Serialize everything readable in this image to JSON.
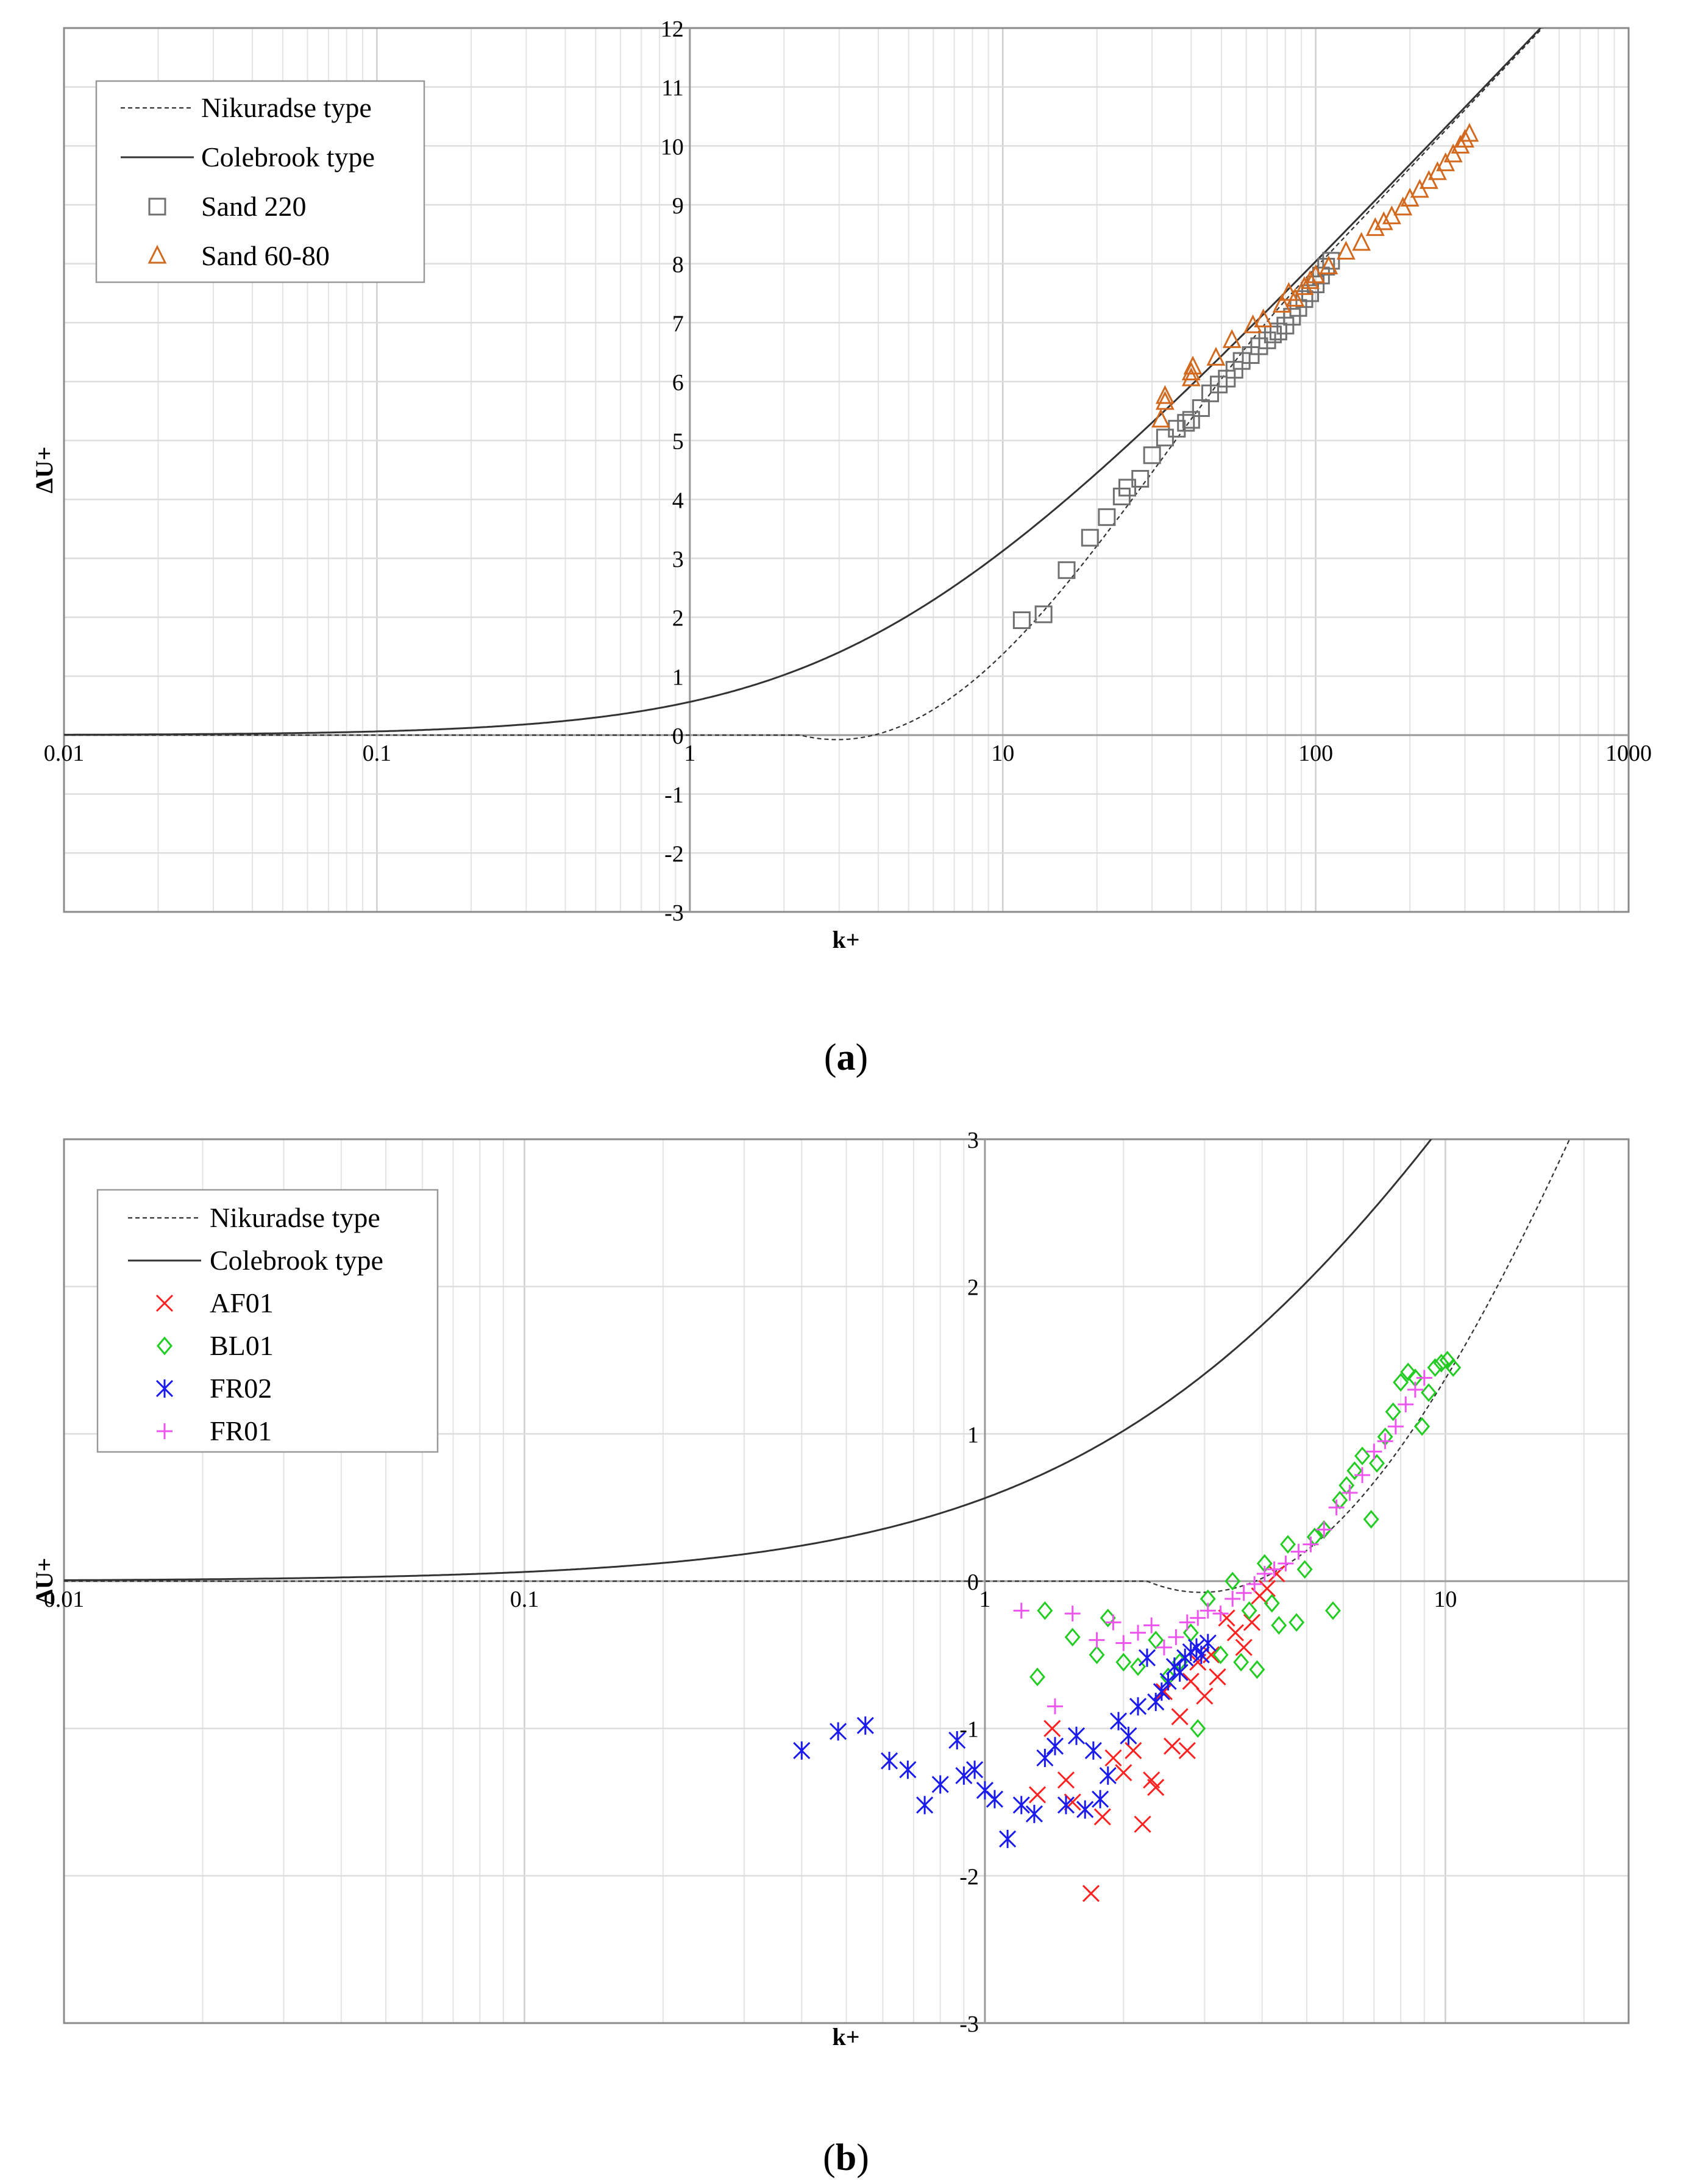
{
  "chart_data": [
    {
      "type": "scatter",
      "panel": "(a)",
      "caption_open": "(",
      "caption_letter": "a",
      "caption_close": ")",
      "xlabel": "k+",
      "ylabel": "ΔU+",
      "xscale": "log",
      "xlim": [
        0.01,
        1000
      ],
      "ylim": [
        -3,
        12
      ],
      "x_ticks": [
        {
          "v": 0.01,
          "label": "0.01"
        },
        {
          "v": 0.1,
          "label": "0.1"
        },
        {
          "v": 1,
          "label": "1"
        },
        {
          "v": 10,
          "label": "10"
        },
        {
          "v": 100,
          "label": "100"
        },
        {
          "v": 1000,
          "label": "1000"
        }
      ],
      "y_ticks": [
        -3,
        -2,
        -1,
        0,
        1,
        2,
        3,
        4,
        5,
        6,
        7,
        8,
        9,
        10,
        11,
        12
      ],
      "y_tick_labels": [
        "-3",
        "-2",
        "-1",
        "0",
        "1",
        "2",
        "3",
        "4",
        "5",
        "6",
        "7",
        "8",
        "9",
        "10",
        "11",
        "12"
      ],
      "grid": true,
      "legend_position": "top-left",
      "legend": [
        {
          "label": "Nikuradse type",
          "marker": "dashed-line",
          "color": "#333333"
        },
        {
          "label": "Colebrook type",
          "marker": "solid-line",
          "color": "#333333"
        },
        {
          "label": "Sand 220",
          "marker": "square",
          "color": "#707070"
        },
        {
          "label": "Sand 60-80",
          "marker": "triangle",
          "color": "#d2691e"
        }
      ],
      "curves": [
        "nikuradse",
        "colebrook"
      ],
      "series": [
        {
          "name": "Sand 220",
          "marker": "square",
          "color": "#707070",
          "points": [
            [
              11.5,
              1.95
            ],
            [
              13.5,
              2.05
            ],
            [
              16,
              2.8
            ],
            [
              19,
              3.35
            ],
            [
              21.5,
              3.7
            ],
            [
              24,
              4.05
            ],
            [
              25,
              4.2
            ],
            [
              27.5,
              4.35
            ],
            [
              30,
              4.75
            ],
            [
              33,
              5.05
            ],
            [
              36,
              5.2
            ],
            [
              38.5,
              5.3
            ],
            [
              40,
              5.35
            ],
            [
              43,
              5.55
            ],
            [
              46,
              5.8
            ],
            [
              49,
              5.95
            ],
            [
              52,
              6.05
            ],
            [
              55,
              6.2
            ],
            [
              58,
              6.35
            ],
            [
              62,
              6.45
            ],
            [
              66,
              6.6
            ],
            [
              70,
              6.7
            ],
            [
              73,
              6.8
            ],
            [
              76,
              6.85
            ],
            [
              80,
              6.95
            ],
            [
              84,
              7.1
            ],
            [
              88,
              7.25
            ],
            [
              92,
              7.4
            ],
            [
              96,
              7.5
            ],
            [
              100,
              7.65
            ],
            [
              104,
              7.8
            ],
            [
              108,
              7.95
            ],
            [
              112,
              8.05
            ]
          ]
        },
        {
          "name": "Sand 60-80",
          "marker": "triangle",
          "color": "#d2691e",
          "points": [
            [
              32,
              5.35
            ],
            [
              33,
              5.65
            ],
            [
              33,
              5.75
            ],
            [
              40,
              6.05
            ],
            [
              40,
              6.15
            ],
            [
              40.5,
              6.25
            ],
            [
              48,
              6.4
            ],
            [
              54,
              6.7
            ],
            [
              63,
              6.95
            ],
            [
              68,
              7.05
            ],
            [
              78,
              7.3
            ],
            [
              82,
              7.5
            ],
            [
              86,
              7.4
            ],
            [
              92,
              7.6
            ],
            [
              96,
              7.7
            ],
            [
              100,
              7.8
            ],
            [
              110,
              7.95
            ],
            [
              125,
              8.2
            ],
            [
              140,
              8.35
            ],
            [
              155,
              8.6
            ],
            [
              165,
              8.7
            ],
            [
              175,
              8.8
            ],
            [
              190,
              8.95
            ],
            [
              200,
              9.1
            ],
            [
              215,
              9.25
            ],
            [
              230,
              9.4
            ],
            [
              245,
              9.55
            ],
            [
              260,
              9.7
            ],
            [
              275,
              9.85
            ],
            [
              290,
              10.0
            ],
            [
              300,
              10.1
            ],
            [
              310,
              10.2
            ]
          ]
        }
      ]
    },
    {
      "type": "scatter",
      "panel": "(b)",
      "caption_open": "(",
      "caption_letter": "b",
      "caption_close": ")",
      "xlabel": "k+",
      "ylabel": "ΔU+",
      "xscale": "log",
      "xlim": [
        0.01,
        25
      ],
      "ylim": [
        -3,
        3
      ],
      "x_ticks": [
        {
          "v": 0.01,
          "label": "0.01"
        },
        {
          "v": 0.1,
          "label": "0.1"
        },
        {
          "v": 1,
          "label": "1"
        },
        {
          "v": 10,
          "label": "10"
        }
      ],
      "y_ticks": [
        -3,
        -2,
        -1,
        0,
        1,
        2,
        3
      ],
      "y_tick_labels": [
        "-3",
        "-2",
        "-1",
        "0",
        "1",
        "2",
        "3"
      ],
      "grid": true,
      "legend_position": "top-left",
      "legend": [
        {
          "label": "Nikuradse type",
          "marker": "dashed-line",
          "color": "#333333"
        },
        {
          "label": "Colebrook type",
          "marker": "solid-line",
          "color": "#333333"
        },
        {
          "label": "AF01",
          "marker": "x",
          "color": "#ff2020"
        },
        {
          "label": "BL01",
          "marker": "diamond",
          "color": "#22cc22"
        },
        {
          "label": "FR02",
          "marker": "asterisk",
          "color": "#1a1aee"
        },
        {
          "label": "FR01",
          "marker": "plus",
          "color": "#ee55ee"
        }
      ],
      "curves": [
        "nikuradse",
        "colebrook"
      ],
      "series": [
        {
          "name": "AF01",
          "marker": "x",
          "color": "#ff2020",
          "points": [
            [
              1.3,
              -1.45
            ],
            [
              1.4,
              -1.0
            ],
            [
              1.5,
              -1.35
            ],
            [
              1.55,
              -1.5
            ],
            [
              1.65,
              -1.55
            ],
            [
              1.7,
              -2.12
            ],
            [
              1.8,
              -1.6
            ],
            [
              1.9,
              -1.2
            ],
            [
              2.0,
              -1.3
            ],
            [
              2.1,
              -1.15
            ],
            [
              2.2,
              -1.65
            ],
            [
              2.3,
              -1.35
            ],
            [
              2.35,
              -1.4
            ],
            [
              2.45,
              -0.75
            ],
            [
              2.55,
              -1.12
            ],
            [
              2.65,
              -0.92
            ],
            [
              2.75,
              -1.15
            ],
            [
              2.8,
              -0.68
            ],
            [
              2.9,
              -0.55
            ],
            [
              3.0,
              -0.78
            ],
            [
              3.1,
              -0.5
            ],
            [
              3.2,
              -0.65
            ],
            [
              3.35,
              -0.25
            ],
            [
              3.5,
              -0.35
            ],
            [
              3.65,
              -0.45
            ],
            [
              3.8,
              -0.28
            ],
            [
              3.95,
              -0.1
            ],
            [
              4.1,
              -0.05
            ],
            [
              4.3,
              0.05
            ]
          ]
        },
        {
          "name": "BL01",
          "marker": "diamond",
          "color": "#22cc22",
          "points": [
            [
              1.3,
              -0.65
            ],
            [
              1.35,
              -0.2
            ],
            [
              1.55,
              -0.38
            ],
            [
              1.75,
              -0.5
            ],
            [
              1.85,
              -0.25
            ],
            [
              2.0,
              -0.55
            ],
            [
              2.15,
              -0.58
            ],
            [
              2.35,
              -0.4
            ],
            [
              2.5,
              -0.65
            ],
            [
              2.65,
              -0.55
            ],
            [
              2.8,
              -0.35
            ],
            [
              2.9,
              -1.0
            ],
            [
              3.05,
              -0.12
            ],
            [
              3.25,
              -0.5
            ],
            [
              3.45,
              0.0
            ],
            [
              3.6,
              -0.55
            ],
            [
              3.75,
              -0.2
            ],
            [
              3.9,
              -0.6
            ],
            [
              4.05,
              0.12
            ],
            [
              4.2,
              -0.15
            ],
            [
              4.35,
              -0.3
            ],
            [
              4.55,
              0.25
            ],
            [
              4.75,
              -0.28
            ],
            [
              4.95,
              0.08
            ],
            [
              5.2,
              0.3
            ],
            [
              5.45,
              0.35
            ],
            [
              5.7,
              -0.2
            ],
            [
              5.9,
              0.55
            ],
            [
              6.1,
              0.65
            ],
            [
              6.35,
              0.75
            ],
            [
              6.6,
              0.85
            ],
            [
              6.9,
              0.42
            ],
            [
              7.1,
              0.8
            ],
            [
              7.4,
              0.98
            ],
            [
              7.7,
              1.15
            ],
            [
              8.0,
              1.35
            ],
            [
              8.3,
              1.42
            ],
            [
              8.6,
              1.38
            ],
            [
              8.9,
              1.05
            ],
            [
              9.2,
              1.28
            ],
            [
              9.5,
              1.45
            ],
            [
              9.8,
              1.48
            ],
            [
              10.1,
              1.5
            ],
            [
              10.4,
              1.45
            ]
          ]
        },
        {
          "name": "FR02",
          "marker": "asterisk",
          "color": "#1a1aee",
          "points": [
            [
              0.4,
              -1.15
            ],
            [
              0.48,
              -1.02
            ],
            [
              0.55,
              -0.98
            ],
            [
              0.62,
              -1.22
            ],
            [
              0.68,
              -1.28
            ],
            [
              0.74,
              -1.52
            ],
            [
              0.8,
              -1.38
            ],
            [
              0.87,
              -1.08
            ],
            [
              0.9,
              -1.32
            ],
            [
              0.95,
              -1.28
            ],
            [
              1.0,
              -1.42
            ],
            [
              1.05,
              -1.48
            ],
            [
              1.12,
              -1.75
            ],
            [
              1.2,
              -1.52
            ],
            [
              1.28,
              -1.58
            ],
            [
              1.35,
              -1.2
            ],
            [
              1.42,
              -1.12
            ],
            [
              1.5,
              -1.52
            ],
            [
              1.58,
              -1.05
            ],
            [
              1.65,
              -1.55
            ],
            [
              1.72,
              -1.15
            ],
            [
              1.78,
              -1.48
            ],
            [
              1.85,
              -1.32
            ],
            [
              1.95,
              -0.95
            ],
            [
              2.05,
              -1.05
            ],
            [
              2.15,
              -0.85
            ],
            [
              2.25,
              -0.52
            ],
            [
              2.35,
              -0.82
            ],
            [
              2.42,
              -0.75
            ],
            [
              2.5,
              -0.68
            ],
            [
              2.58,
              -0.58
            ],
            [
              2.65,
              -0.62
            ],
            [
              2.72,
              -0.52
            ],
            [
              2.8,
              -0.48
            ],
            [
              2.88,
              -0.45
            ],
            [
              2.95,
              -0.5
            ],
            [
              3.05,
              -0.42
            ]
          ]
        },
        {
          "name": "FR01",
          "marker": "plus",
          "color": "#ee55ee",
          "points": [
            [
              1.2,
              -0.2
            ],
            [
              1.42,
              -0.85
            ],
            [
              1.55,
              -0.22
            ],
            [
              1.75,
              -0.4
            ],
            [
              1.9,
              -0.28
            ],
            [
              2.0,
              -0.42
            ],
            [
              2.15,
              -0.35
            ],
            [
              2.3,
              -0.3
            ],
            [
              2.45,
              -0.45
            ],
            [
              2.6,
              -0.38
            ],
            [
              2.75,
              -0.28
            ],
            [
              2.9,
              -0.25
            ],
            [
              3.05,
              -0.2
            ],
            [
              3.25,
              -0.22
            ],
            [
              3.45,
              -0.12
            ],
            [
              3.65,
              -0.08
            ],
            [
              3.85,
              -0.02
            ],
            [
              4.05,
              0.05
            ],
            [
              4.25,
              0.08
            ],
            [
              4.5,
              0.12
            ],
            [
              4.8,
              0.2
            ],
            [
              5.1,
              0.25
            ],
            [
              5.45,
              0.35
            ],
            [
              5.8,
              0.5
            ],
            [
              6.2,
              0.6
            ],
            [
              6.6,
              0.72
            ],
            [
              7.0,
              0.88
            ],
            [
              7.4,
              0.95
            ],
            [
              7.8,
              1.05
            ],
            [
              8.2,
              1.2
            ],
            [
              8.6,
              1.3
            ],
            [
              9.0,
              1.38
            ]
          ]
        }
      ]
    }
  ]
}
